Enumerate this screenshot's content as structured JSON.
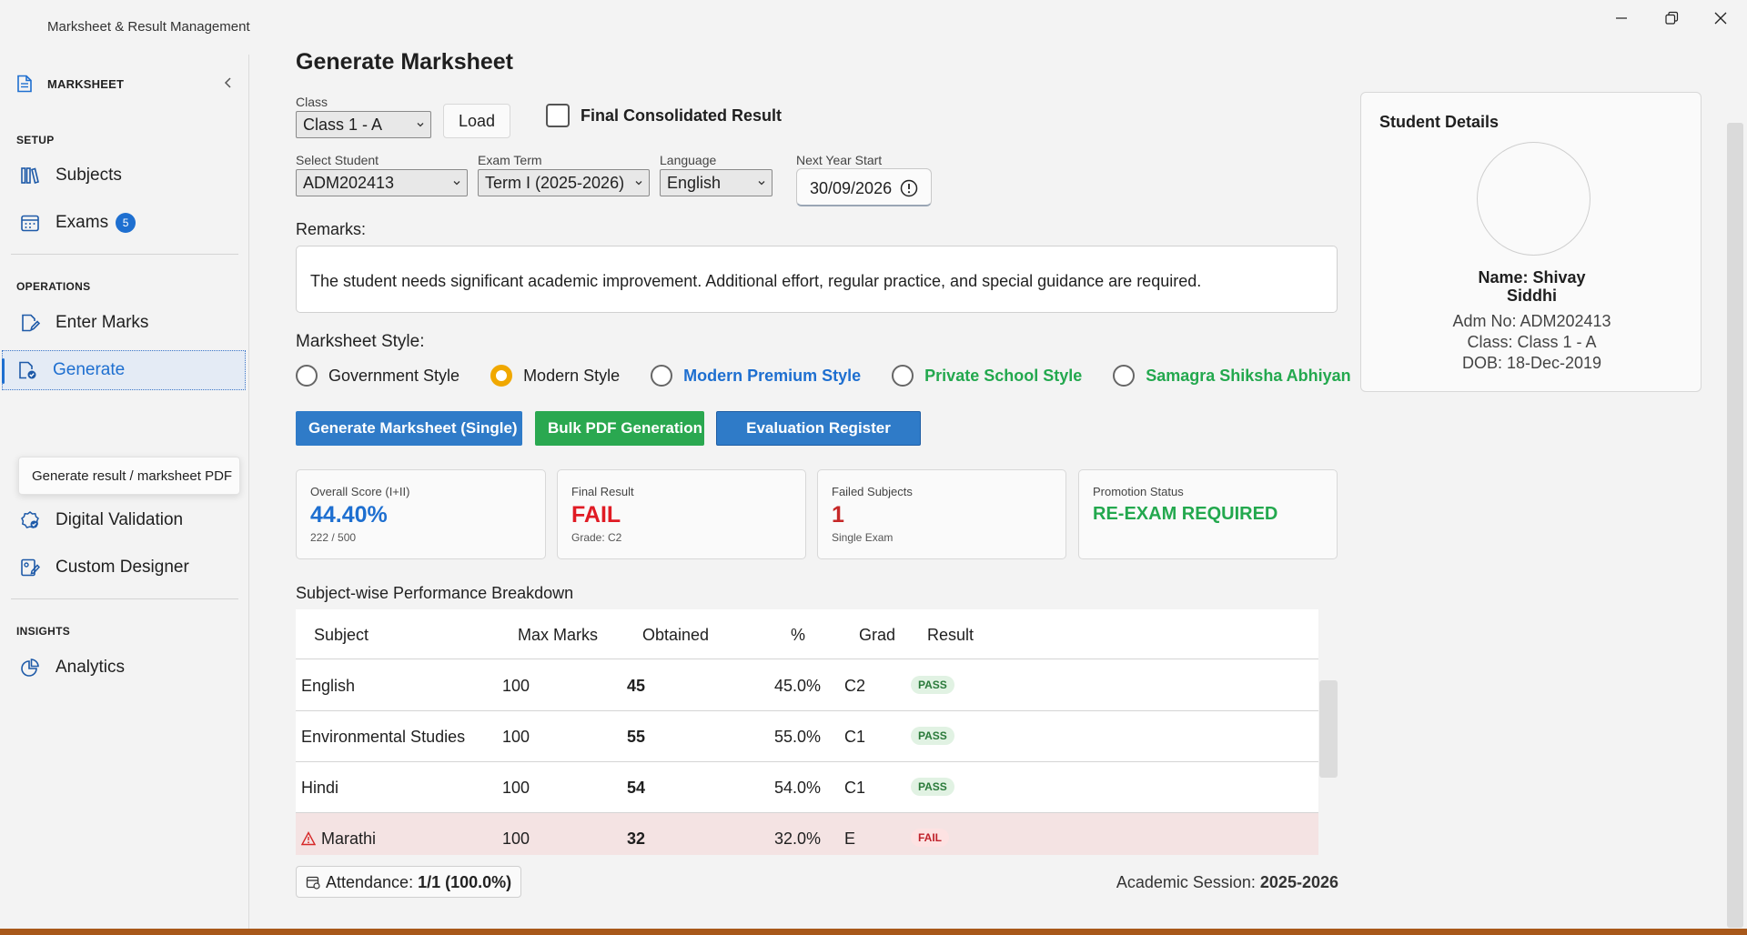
{
  "window": {
    "title": "Marksheet & Result Management"
  },
  "sidebar": {
    "header": "MARKSHEET",
    "sections": {
      "setup": "SETUP",
      "operations": "OPERATIONS",
      "insights": "INSIGHTS"
    },
    "items": {
      "subjects": "Subjects",
      "exams": "Exams",
      "exams_badge": "5",
      "enter_marks": "Enter Marks",
      "generate": "Generate",
      "digital_validation": "Digital Validation",
      "custom_designer": "Custom Designer",
      "analytics": "Analytics"
    },
    "tooltip": "Generate result / marksheet PDF"
  },
  "page": {
    "title": "Generate Marksheet"
  },
  "filters": {
    "class_label": "Class",
    "class_value": "Class 1 - A",
    "load_label": "Load",
    "final_consolidated_label": "Final Consolidated Result",
    "final_consolidated_checked": false,
    "student_label": "Select Student",
    "student_value": "ADM202413",
    "exam_term_label": "Exam Term",
    "exam_term_value": "Term I (2025-2026)",
    "language_label": "Language",
    "language_value": "English",
    "next_year_label": "Next Year Start",
    "next_year_value": "30/09/2026"
  },
  "remarks": {
    "label": "Remarks:",
    "text": "The student needs significant academic improvement. Additional effort, regular practice, and special guidance are required."
  },
  "marksheet_style": {
    "label": "Marksheet Style:",
    "options": [
      "Government Style",
      "Modern Style",
      "Modern Premium Style",
      "Private School Style",
      "Samagra Shiksha Abhiyan"
    ],
    "selected": "Modern Style"
  },
  "actions": {
    "generate_single": "Generate Marksheet (Single)",
    "bulk_pdf": "Bulk PDF Generation",
    "evaluation_register": "Evaluation Register"
  },
  "summary": {
    "overall_title": "Overall Score (I+II)",
    "overall_value": "44.40%",
    "overall_sub": "222 / 500",
    "final_title": "Final Result",
    "final_value": "FAIL",
    "final_sub": "Grade: C2",
    "failed_title": "Failed Subjects",
    "failed_value": "1",
    "failed_sub": "Single Exam",
    "promotion_title": "Promotion Status",
    "promotion_value": "RE-EXAM REQUIRED"
  },
  "breakdown": {
    "title": "Subject-wise Performance Breakdown",
    "columns": [
      "Subject",
      "Max Marks",
      "Obtained",
      "%",
      "Grad",
      "Result"
    ],
    "rows": [
      {
        "subject": "English",
        "max": "100",
        "obtained": "45",
        "pct": "45.0%",
        "grade": "C2",
        "result": "PASS"
      },
      {
        "subject": "Environmental Studies",
        "max": "100",
        "obtained": "55",
        "pct": "55.0%",
        "grade": "C1",
        "result": "PASS"
      },
      {
        "subject": "Hindi",
        "max": "100",
        "obtained": "54",
        "pct": "54.0%",
        "grade": "C1",
        "result": "PASS"
      },
      {
        "subject": "Marathi",
        "max": "100",
        "obtained": "32",
        "pct": "32.0%",
        "grade": "E",
        "result": "FAIL"
      }
    ]
  },
  "footer": {
    "attendance_label": "Attendance:",
    "attendance_value": "1/1 (100.0%)",
    "session_label": "Academic Session:",
    "session_value": "2025-2026"
  },
  "student": {
    "title": "Student Details",
    "name_label": "Name:",
    "first_name": "Shivay",
    "last_name": "Siddhi",
    "adm_line": "Adm No: ADM202413",
    "class_line": "Class: Class 1 - A",
    "dob_line": "DOB: 18-Dec-2019"
  },
  "colors": {
    "accent": "#1e6fd0",
    "success": "#23a84e",
    "danger": "#e01b24",
    "warning": "#f0a800"
  }
}
